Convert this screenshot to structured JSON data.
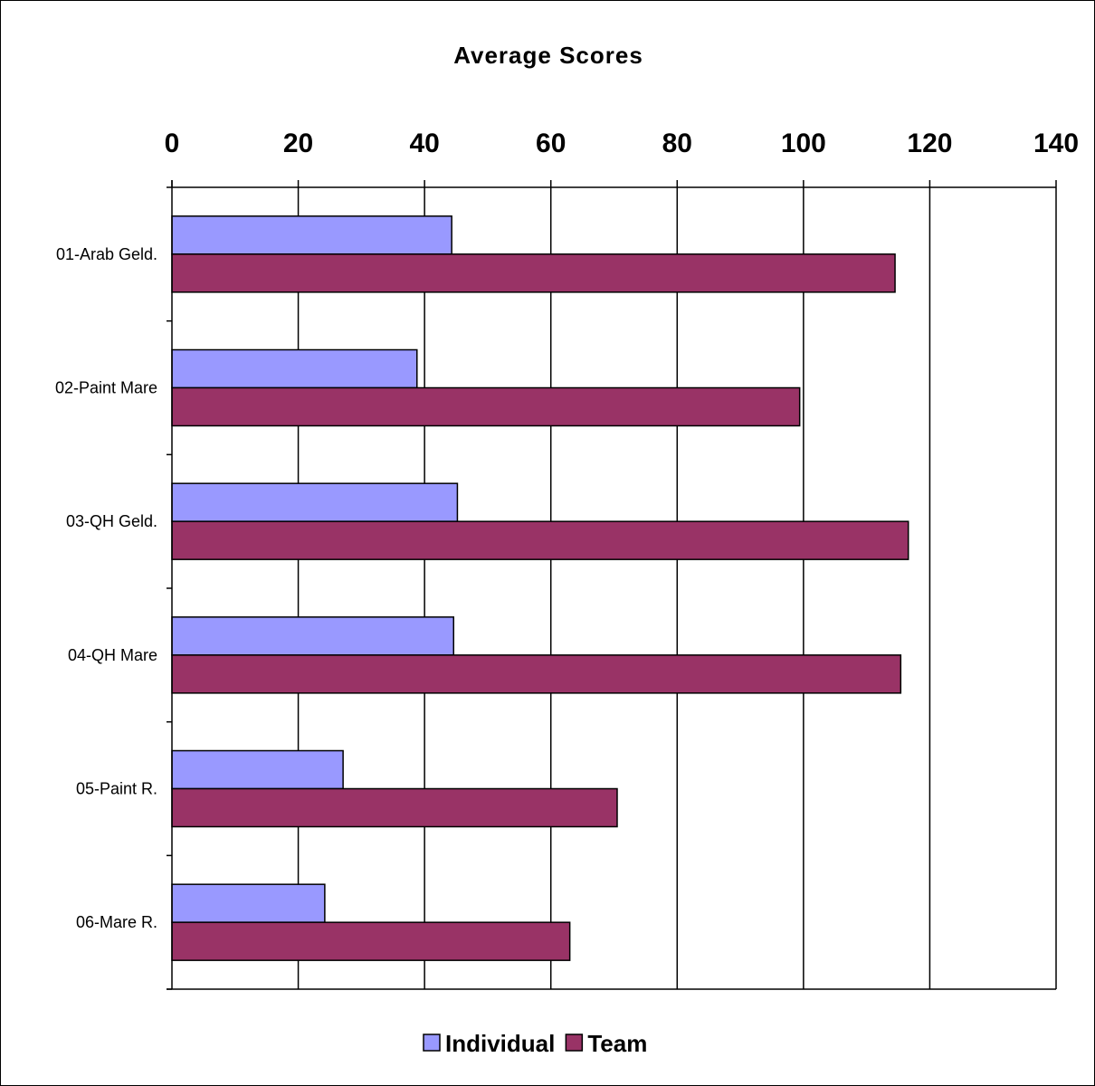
{
  "chart_data": {
    "type": "bar",
    "orientation": "horizontal",
    "title": "Average Scores",
    "xlabel": "",
    "ylabel": "",
    "xlim": [
      0,
      140
    ],
    "x_ticks": [
      "0",
      "20",
      "40",
      "60",
      "80",
      "100",
      "120",
      "140"
    ],
    "x_axis_position": "top",
    "grid": true,
    "legend_position": "bottom",
    "categories": [
      "01-Arab Geld.",
      "02-Paint Mare",
      "03-QH Geld.",
      "04-QH Mare",
      "05-Paint R.",
      "06-Mare R."
    ],
    "series": [
      {
        "name": "Individual",
        "color": "#9999ff",
        "values": [
          44.3,
          38.8,
          45.2,
          44.6,
          27.1,
          24.2
        ]
      },
      {
        "name": "Team",
        "color": "#993366",
        "values": [
          114.5,
          99.4,
          116.6,
          115.4,
          70.5,
          63.0
        ]
      }
    ]
  }
}
